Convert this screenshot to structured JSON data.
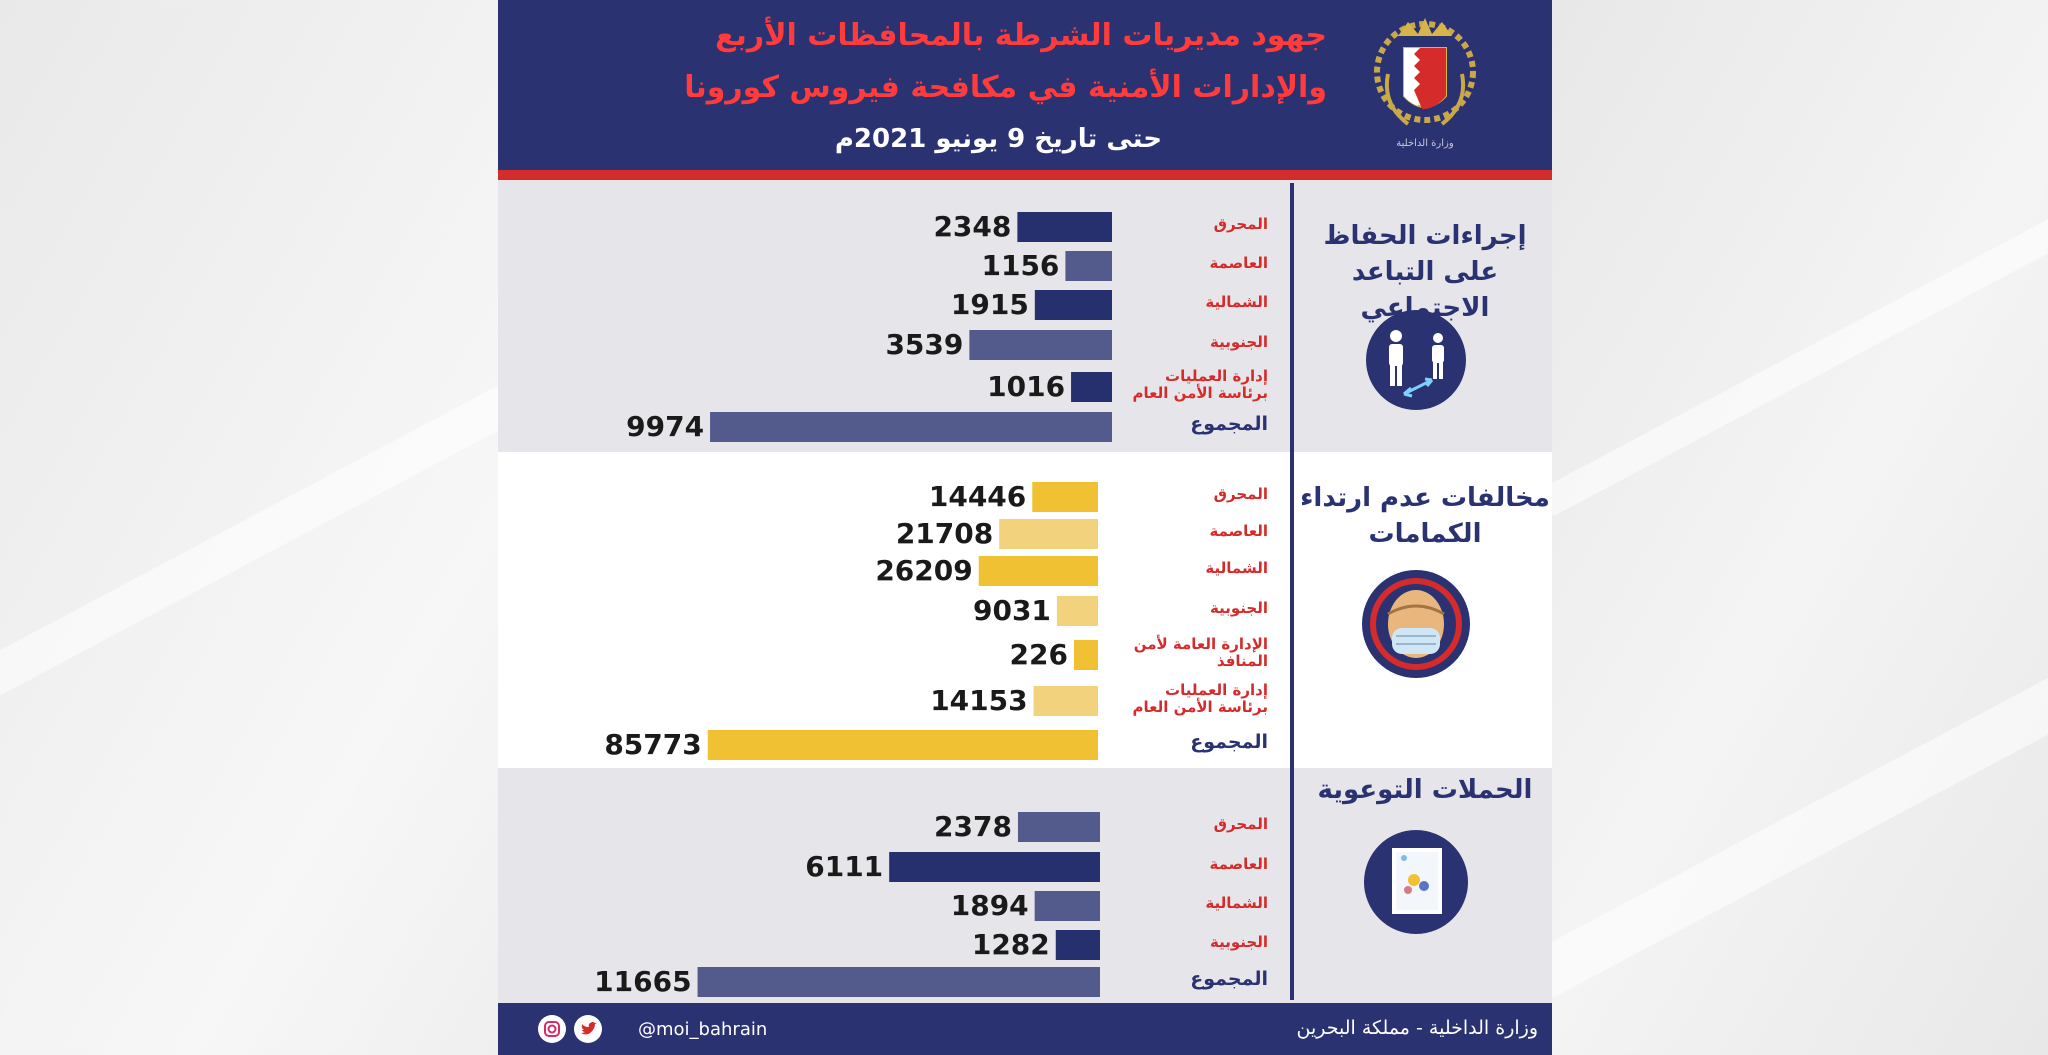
{
  "header": {
    "title_line1": "جهود مديريات الشرطة بالمحافظات الأربع",
    "title_line2": "والإدارات الأمنية في مكافحة فيروس كورونا",
    "date": "حتى تاريخ 9 يونيو 2021م",
    "emblem_caption": "وزارة الداخلية"
  },
  "colors": {
    "navy": "#2a3272",
    "navy_bar": "#27306f",
    "navy_bar_light": "#535a8c",
    "gold": "#f0c233",
    "gold_light": "#f3d27e",
    "red": "#d52b2b"
  },
  "sections": [
    {
      "title": "إجراءات الحفاظ على التباعد الاجتماعي",
      "icon": "social-distancing-icon"
    },
    {
      "title": "مخالفات عدم ارتداء الكمامات",
      "icon": "face-mask-icon"
    },
    {
      "title": "الحملات التوعوية",
      "icon": "awareness-campaign-icon"
    }
  ],
  "chart_data": [
    {
      "type": "bar",
      "orientation": "horizontal",
      "title": "إجراءات الحفاظ على التباعد الاجتماعي",
      "categories": [
        "المحرق",
        "العاصمة",
        "الشمالية",
        "الجنوبية",
        "إدارة العمليات برئاسة الأمن العام",
        "المجموع"
      ],
      "values": [
        2348,
        1156,
        1915,
        3539,
        1016,
        9974
      ]
    },
    {
      "type": "bar",
      "orientation": "horizontal",
      "title": "مخالفات عدم ارتداء الكمامات",
      "categories": [
        "المحرق",
        "العاصمة",
        "الشمالية",
        "الجنوبية",
        "الإدارة العامة لأمن المنافذ",
        "إدارة العمليات برئاسة الأمن العام",
        "المجموع"
      ],
      "values": [
        14446,
        21708,
        26209,
        9031,
        226,
        14153,
        85773
      ]
    },
    {
      "type": "bar",
      "orientation": "horizontal",
      "title": "الحملات التوعوية",
      "categories": [
        "المحرق",
        "العاصمة",
        "الشمالية",
        "الجنوبية",
        "المجموع"
      ],
      "values": [
        2378,
        6111,
        1894,
        1282,
        11665
      ]
    }
  ],
  "footer": {
    "ministry": "وزارة الداخلية - مملكة البحرين",
    "handle": "@moi_bahrain",
    "social_icons": [
      "twitter-icon",
      "instagram-icon"
    ]
  }
}
